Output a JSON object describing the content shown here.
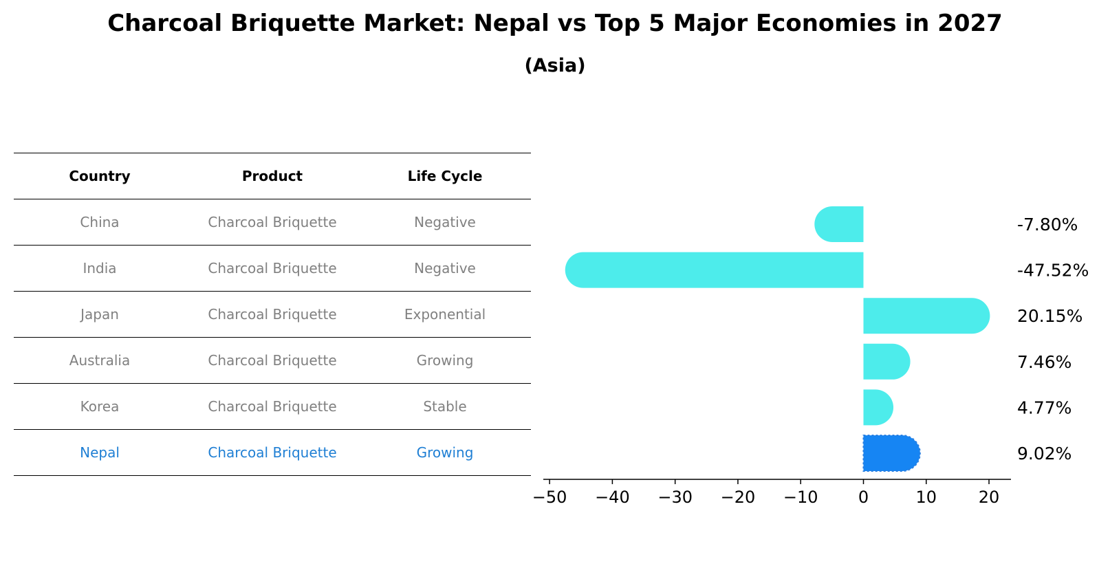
{
  "title": "Charcoal Briquette Market: Nepal vs Top 5 Major Economies in 2027",
  "subtitle": "(Asia)",
  "table": {
    "headers": [
      "Country",
      "Product",
      "Life Cycle"
    ],
    "rows": [
      {
        "country": "China",
        "product": "Charcoal Briquette",
        "life_cycle": "Negative"
      },
      {
        "country": "India",
        "product": "Charcoal Briquette",
        "life_cycle": "Negative"
      },
      {
        "country": "Japan",
        "product": "Charcoal Briquette",
        "life_cycle": "Exponential"
      },
      {
        "country": "Australia",
        "product": "Charcoal Briquette",
        "life_cycle": "Growing"
      },
      {
        "country": "Korea",
        "product": "Charcoal Briquette",
        "life_cycle": "Stable"
      },
      {
        "country": "Nepal",
        "product": "Charcoal Briquette",
        "life_cycle": "Growing"
      }
    ]
  },
  "chart_data": {
    "type": "bar",
    "orientation": "horizontal",
    "categories": [
      "China",
      "India",
      "Japan",
      "Australia",
      "Korea",
      "Nepal"
    ],
    "values": [
      -7.8,
      -47.52,
      20.15,
      7.46,
      4.77,
      9.02
    ],
    "value_labels": [
      "-7.80%",
      "-47.52%",
      "20.15%",
      "7.46%",
      "4.77%",
      "9.02%"
    ],
    "highlight": "Nepal",
    "xlim": [
      -51,
      23.5
    ],
    "xticks": [
      -50,
      -40,
      -30,
      -20,
      -10,
      0,
      10,
      20
    ],
    "xtick_labels": [
      "−50",
      "−40",
      "−30",
      "−20",
      "−10",
      "0",
      "10",
      "20"
    ],
    "colors": {
      "default": "#4deceb",
      "highlight": "#1685f3"
    },
    "grid": false
  }
}
